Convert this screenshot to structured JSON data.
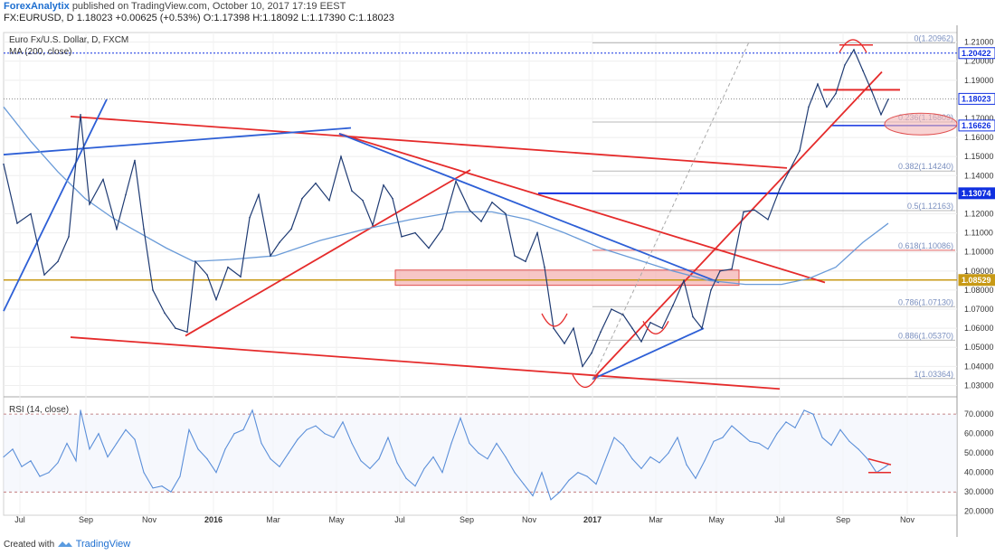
{
  "header": {
    "brand": "ForexAnalytix",
    "published": "published on TradingView.com, October 10, 2017 17:19 EEST",
    "symbol": "FX:EURUSD, D",
    "close": "1.18023",
    "change": "+0.00625 (+0.53%)",
    "o_label": "O:",
    "o": "1.17398",
    "h_label": "H:",
    "h": "1.18092",
    "l_label": "L:",
    "l": "1.17390",
    "c_label": "C:",
    "c": "1.18023"
  },
  "footer": {
    "created_with": "Created with",
    "tradingview": "TradingView"
  },
  "colors": {
    "price": "#1f3b73",
    "ma": "#6a9bd8",
    "rsi": "#5b8fd9",
    "trend_red": "#e52b2b",
    "trend_blue": "#2d5fd6",
    "fib": "#b8b8b8",
    "support_zone": "#f2a0a0",
    "level_gold": "#c89a16",
    "level_blue": "#1030e0"
  },
  "chart_data": [
    {
      "type": "line",
      "title": "Euro Fx/U.S. Dollar, D, FXCM",
      "indicator": "MA (200, close)",
      "ylim": [
        1.025,
        1.215
      ],
      "y_ticks": [
        "1.21000",
        "1.20000",
        "1.19000",
        "1.17000",
        "1.16000",
        "1.15000",
        "1.14000",
        "1.12000",
        "1.11000",
        "1.10000",
        "1.09000",
        "1.08000",
        "1.07000",
        "1.06000",
        "1.05000",
        "1.04000",
        "1.03000"
      ],
      "x_labels": [
        "Jul",
        "Sep",
        "Nov",
        "2016",
        "Mar",
        "May",
        "Jul",
        "Sep",
        "Nov",
        "2017",
        "Mar",
        "May",
        "Jul",
        "Sep",
        "Nov"
      ],
      "price_tags": [
        {
          "label": "1.21000",
          "value": 1.21,
          "style": "none"
        },
        {
          "label": "1.20422",
          "value": 1.20422,
          "style": "blue"
        },
        {
          "label": "1.18023",
          "value": 1.18023,
          "style": "blue"
        },
        {
          "label": "1.16626",
          "value": 1.16626,
          "style": "blue"
        },
        {
          "label": "1.13074",
          "value": 1.13074,
          "style": "navy"
        },
        {
          "label": "1.08529",
          "value": 1.08529,
          "style": "gold"
        }
      ],
      "fib_levels": [
        {
          "label": "0(1.20962)",
          "value": 1.20962
        },
        {
          "label": "0.236(1.16809)",
          "value": 1.16809
        },
        {
          "label": "0.382(1.14240)",
          "value": 1.1424
        },
        {
          "label": "0.5(1.12163)",
          "value": 1.12163
        },
        {
          "label": "0.618(1.10086)",
          "value": 1.10086
        },
        {
          "label": "0.786(1.07130)",
          "value": 1.0713
        },
        {
          "label": "0.886(1.05370)",
          "value": 1.0537
        },
        {
          "label": "1(1.03364)",
          "value": 1.03364
        }
      ],
      "series": [
        {
          "values": [
            [
              0,
              1.146
            ],
            [
              15,
              1.115
            ],
            [
              30,
              1.12
            ],
            [
              45,
              1.088
            ],
            [
              60,
              1.095
            ],
            [
              72,
              1.108
            ],
            [
              85,
              1.172
            ],
            [
              95,
              1.125
            ],
            [
              110,
              1.138
            ],
            [
              125,
              1.112
            ],
            [
              135,
              1.13
            ],
            [
              145,
              1.148
            ],
            [
              155,
              1.112
            ],
            [
              165,
              1.08
            ],
            [
              178,
              1.068
            ],
            [
              190,
              1.06
            ],
            [
              203,
              1.058
            ],
            [
              212,
              1.095
            ],
            [
              225,
              1.088
            ],
            [
              235,
              1.075
            ],
            [
              248,
              1.092
            ],
            [
              262,
              1.087
            ],
            [
              272,
              1.118
            ],
            [
              282,
              1.13
            ],
            [
              295,
              1.098
            ],
            [
              305,
              1.105
            ],
            [
              318,
              1.112
            ],
            [
              330,
              1.128
            ],
            [
              345,
              1.136
            ],
            [
              360,
              1.127
            ],
            [
              373,
              1.15
            ],
            [
              385,
              1.132
            ],
            [
              397,
              1.127
            ],
            [
              408,
              1.114
            ],
            [
              420,
              1.135
            ],
            [
              430,
              1.128
            ],
            [
              440,
              1.108
            ],
            [
              455,
              1.11
            ],
            [
              470,
              1.102
            ],
            [
              485,
              1.112
            ],
            [
              500,
              1.137
            ],
            [
              515,
              1.122
            ],
            [
              528,
              1.116
            ],
            [
              540,
              1.126
            ],
            [
              555,
              1.12
            ],
            [
              565,
              1.098
            ],
            [
              577,
              1.095
            ],
            [
              590,
              1.11
            ],
            [
              598,
              1.092
            ],
            [
              608,
              1.06
            ],
            [
              620,
              1.052
            ],
            [
              630,
              1.06
            ],
            [
              640,
              1.04
            ],
            [
              650,
              1.047
            ],
            [
              660,
              1.058
            ],
            [
              672,
              1.07
            ],
            [
              685,
              1.067
            ],
            [
              695,
              1.06
            ],
            [
              705,
              1.053
            ],
            [
              715,
              1.063
            ],
            [
              728,
              1.06
            ],
            [
              740,
              1.072
            ],
            [
              752,
              1.085
            ],
            [
              762,
              1.066
            ],
            [
              772,
              1.06
            ],
            [
              782,
              1.08
            ],
            [
              792,
              1.09
            ],
            [
              805,
              1.091
            ],
            [
              818,
              1.121
            ],
            [
              830,
              1.122
            ],
            [
              845,
              1.117
            ],
            [
              858,
              1.133
            ],
            [
              868,
              1.142
            ],
            [
              880,
              1.153
            ],
            [
              890,
              1.176
            ],
            [
              900,
              1.188
            ],
            [
              910,
              1.176
            ],
            [
              920,
              1.183
            ],
            [
              930,
              1.198
            ],
            [
              940,
              1.206
            ],
            [
              950,
              1.195
            ],
            [
              960,
              1.184
            ],
            [
              970,
              1.172
            ],
            [
              978,
              1.18
            ]
          ]
        },
        {
          "name": "MA (200, close)",
          "values": [
            [
              0,
              1.176
            ],
            [
              30,
              1.158
            ],
            [
              60,
              1.142
            ],
            [
              90,
              1.128
            ],
            [
              120,
              1.118
            ],
            [
              150,
              1.11
            ],
            [
              180,
              1.102
            ],
            [
              210,
              1.095
            ],
            [
              250,
              1.096
            ],
            [
              300,
              1.098
            ],
            [
              350,
              1.106
            ],
            [
              400,
              1.112
            ],
            [
              450,
              1.117
            ],
            [
              500,
              1.121
            ],
            [
              540,
              1.121
            ],
            [
              580,
              1.117
            ],
            [
              620,
              1.11
            ],
            [
              660,
              1.102
            ],
            [
              700,
              1.096
            ],
            [
              740,
              1.09
            ],
            [
              780,
              1.085
            ],
            [
              820,
              1.083
            ],
            [
              860,
              1.083
            ],
            [
              890,
              1.086
            ],
            [
              920,
              1.092
            ],
            [
              950,
              1.105
            ],
            [
              978,
              1.115
            ]
          ]
        }
      ]
    },
    {
      "type": "line",
      "title": "RSI (14, close)",
      "ylim": [
        18,
        78
      ],
      "y_ticks": [
        "70.0000",
        "60.0000",
        "50.0000",
        "40.0000",
        "30.0000",
        "20.0000"
      ],
      "reference_lines": [
        70,
        30
      ],
      "series": [
        {
          "values": [
            [
              0,
              48
            ],
            [
              10,
              52
            ],
            [
              20,
              43
            ],
            [
              30,
              46
            ],
            [
              40,
              38
            ],
            [
              50,
              40
            ],
            [
              60,
              45
            ],
            [
              70,
              55
            ],
            [
              80,
              46
            ],
            [
              85,
              72
            ],
            [
              95,
              52
            ],
            [
              105,
              60
            ],
            [
              115,
              48
            ],
            [
              125,
              55
            ],
            [
              135,
              62
            ],
            [
              145,
              57
            ],
            [
              155,
              40
            ],
            [
              165,
              32
            ],
            [
              175,
              33
            ],
            [
              185,
              30
            ],
            [
              195,
              38
            ],
            [
              205,
              62
            ],
            [
              215,
              52
            ],
            [
              225,
              47
            ],
            [
              235,
              40
            ],
            [
              245,
              52
            ],
            [
              255,
              60
            ],
            [
              265,
              62
            ],
            [
              275,
              72
            ],
            [
              285,
              55
            ],
            [
              295,
              47
            ],
            [
              305,
              43
            ],
            [
              315,
              50
            ],
            [
              325,
              57
            ],
            [
              335,
              62
            ],
            [
              345,
              64
            ],
            [
              355,
              60
            ],
            [
              365,
              58
            ],
            [
              375,
              66
            ],
            [
              385,
              55
            ],
            [
              395,
              46
            ],
            [
              405,
              42
            ],
            [
              415,
              47
            ],
            [
              425,
              58
            ],
            [
              435,
              45
            ],
            [
              445,
              37
            ],
            [
              455,
              33
            ],
            [
              465,
              42
            ],
            [
              475,
              48
            ],
            [
              485,
              40
            ],
            [
              495,
              55
            ],
            [
              505,
              68
            ],
            [
              515,
              55
            ],
            [
              525,
              50
            ],
            [
              535,
              47
            ],
            [
              545,
              55
            ],
            [
              555,
              48
            ],
            [
              565,
              40
            ],
            [
              575,
              34
            ],
            [
              585,
              28
            ],
            [
              595,
              40
            ],
            [
              605,
              26
            ],
            [
              615,
              30
            ],
            [
              625,
              36
            ],
            [
              635,
              40
            ],
            [
              645,
              38
            ],
            [
              655,
              34
            ],
            [
              665,
              46
            ],
            [
              675,
              58
            ],
            [
              685,
              54
            ],
            [
              695,
              47
            ],
            [
              705,
              42
            ],
            [
              715,
              48
            ],
            [
              725,
              45
            ],
            [
              735,
              50
            ],
            [
              745,
              58
            ],
            [
              755,
              44
            ],
            [
              765,
              37
            ],
            [
              775,
              46
            ],
            [
              785,
              56
            ],
            [
              795,
              58
            ],
            [
              805,
              64
            ],
            [
              815,
              60
            ],
            [
              825,
              56
            ],
            [
              835,
              55
            ],
            [
              845,
              52
            ],
            [
              855,
              60
            ],
            [
              865,
              66
            ],
            [
              875,
              63
            ],
            [
              885,
              72
            ],
            [
              895,
              70
            ],
            [
              905,
              58
            ],
            [
              915,
              54
            ],
            [
              925,
              62
            ],
            [
              935,
              56
            ],
            [
              945,
              52
            ],
            [
              955,
              47
            ],
            [
              965,
              40
            ],
            [
              975,
              43
            ],
            [
              978,
              44
            ]
          ]
        }
      ]
    }
  ]
}
